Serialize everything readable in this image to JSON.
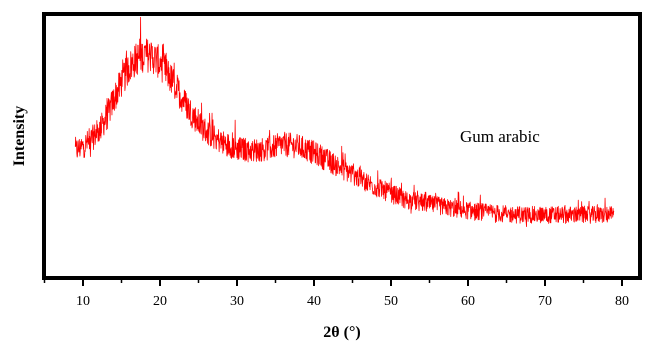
{
  "chart_data": {
    "type": "line",
    "xlabel": "2θ (°)",
    "ylabel": "Intensity",
    "annotation": "Gum arabic",
    "xlim": [
      5,
      82
    ],
    "x_ticks": [
      10,
      20,
      30,
      40,
      50,
      60,
      70,
      80
    ],
    "y_ticks_shown": false,
    "grid": false,
    "series": [
      {
        "color": "#ff0000",
        "points": [
          [
            9,
            0.38
          ],
          [
            10,
            0.4
          ],
          [
            11,
            0.43
          ],
          [
            12,
            0.47
          ],
          [
            13,
            0.53
          ],
          [
            14,
            0.62
          ],
          [
            15,
            0.7
          ],
          [
            16,
            0.77
          ],
          [
            17,
            0.81
          ],
          [
            18,
            0.83
          ],
          [
            19,
            0.82
          ],
          [
            20,
            0.79
          ],
          [
            21,
            0.74
          ],
          [
            22,
            0.68
          ],
          [
            23,
            0.62
          ],
          [
            24,
            0.56
          ],
          [
            25,
            0.51
          ],
          [
            26,
            0.47
          ],
          [
            28,
            0.42
          ],
          [
            30,
            0.39
          ],
          [
            32,
            0.38
          ],
          [
            34,
            0.39
          ],
          [
            36,
            0.41
          ],
          [
            38,
            0.4
          ],
          [
            40,
            0.37
          ],
          [
            42,
            0.33
          ],
          [
            44,
            0.29
          ],
          [
            46,
            0.25
          ],
          [
            48,
            0.21
          ],
          [
            50,
            0.18
          ],
          [
            52,
            0.15
          ],
          [
            55,
            0.13
          ],
          [
            58,
            0.11
          ],
          [
            60,
            0.1
          ],
          [
            63,
            0.09
          ],
          [
            66,
            0.08
          ],
          [
            69,
            0.08
          ],
          [
            72,
            0.08
          ],
          [
            75,
            0.08
          ],
          [
            79,
            0.08
          ]
        ],
        "noise_amplitude": 0.06
      }
    ]
  }
}
